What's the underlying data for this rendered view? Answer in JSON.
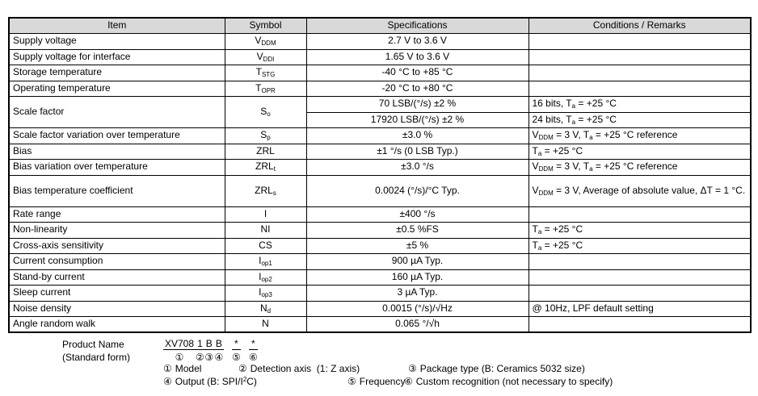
{
  "table": {
    "headers": [
      "Item",
      "Symbol",
      "Specifications",
      "Conditions / Remarks"
    ],
    "rows": [
      {
        "item": "Supply voltage",
        "symbol": [
          "V",
          {
            "sub": "DDM"
          }
        ],
        "spec": [
          "2.7 V to 3.6 V"
        ],
        "cond": []
      },
      {
        "item": "Supply voltage for interface",
        "symbol": [
          "V",
          {
            "sub": "DDI"
          }
        ],
        "spec": [
          "1.65 V to 3.6 V"
        ],
        "cond": []
      },
      {
        "item": "Storage temperature",
        "symbol": [
          "T",
          {
            "sub": "STG"
          }
        ],
        "spec": [
          "-40 °C to +85 °C"
        ],
        "cond": []
      },
      {
        "item": "Operating temperature",
        "symbol": [
          "T",
          {
            "sub": "OPR"
          }
        ],
        "spec": [
          "-20 °C to +80 °C"
        ],
        "cond": []
      },
      {
        "item": "Scale factor",
        "symbol": [
          "S",
          {
            "sub": "o"
          }
        ],
        "subrows": [
          {
            "spec": [
              "70 LSB/(°/s) ±2 %"
            ],
            "cond": [
              "16 bits, T",
              {
                "sub": "a"
              },
              " = +25 °C"
            ]
          },
          {
            "spec": [
              "17920 LSB/(°/s) ±2 %"
            ],
            "cond": [
              "24 bits, T",
              {
                "sub": "a"
              },
              " = +25 °C"
            ]
          }
        ]
      },
      {
        "item": "Scale factor variation over temperature",
        "symbol": [
          "S",
          {
            "sub": "p"
          }
        ],
        "spec": [
          "±3.0 %"
        ],
        "cond": [
          "V",
          {
            "sub": "DDM"
          },
          " = 3 V, T",
          {
            "sub": "a"
          },
          " = +25 °C reference"
        ]
      },
      {
        "item": "Bias",
        "symbol": [
          "ZRL"
        ],
        "spec": [
          "±1 °/s (0 LSB Typ.)"
        ],
        "cond": [
          "T",
          {
            "sub": "a"
          },
          " = +25 °C"
        ]
      },
      {
        "item": "Bias variation over temperature",
        "symbol": [
          "ZRL",
          {
            "sub": "t"
          }
        ],
        "spec": [
          "±3.0 °/s"
        ],
        "cond": [
          "V",
          {
            "sub": "DDM"
          },
          " = 3 V, T",
          {
            "sub": "a"
          },
          " = +25 °C reference"
        ]
      },
      {
        "item": "Bias temperature coefficient",
        "symbol": [
          "ZRL",
          {
            "sub": "s"
          }
        ],
        "spec": [
          "0.0024 (°/s)/°C Typ."
        ],
        "cond": [
          "V",
          {
            "sub": "DDM"
          },
          " = 3 V, Average of absolute value, ΔT = 1 °C."
        ],
        "tall": true
      },
      {
        "item": "Rate range",
        "symbol": [
          "I"
        ],
        "spec": [
          "±400 °/s"
        ],
        "cond": []
      },
      {
        "item": "Non-linearity",
        "symbol": [
          "NI"
        ],
        "spec": [
          "±0.5 %FS"
        ],
        "cond": [
          "T",
          {
            "sub": "a"
          },
          " = +25 °C"
        ]
      },
      {
        "item": "Cross-axis sensitivity",
        "symbol": [
          "CS"
        ],
        "spec": [
          "±5 %"
        ],
        "cond": [
          "T",
          {
            "sub": "a"
          },
          " = +25 °C"
        ]
      },
      {
        "item": "Current consumption",
        "symbol": [
          "I",
          {
            "sub": "op1"
          }
        ],
        "spec": [
          "900 µA Typ."
        ],
        "cond": []
      },
      {
        "item": "Stand-by current",
        "symbol": [
          "I",
          {
            "sub": "op2"
          }
        ],
        "spec": [
          "160 µA Typ."
        ],
        "cond": []
      },
      {
        "item": "Sleep current",
        "symbol": [
          "I",
          {
            "sub": "op3"
          }
        ],
        "spec": [
          "3 µA Typ."
        ],
        "cond": []
      },
      {
        "item": "Noise density",
        "symbol": [
          "N",
          {
            "sub": "d"
          }
        ],
        "spec": [
          "0.0015 (°/s)/√Hz"
        ],
        "cond": [
          "@ 10Hz, LPF default setting"
        ]
      },
      {
        "item": "Angle random walk",
        "symbol": [
          "N"
        ],
        "spec": [
          "0.065 °/√h"
        ],
        "cond": []
      }
    ]
  },
  "product": {
    "label_line1": "Product Name",
    "label_line2": "(Standard form)",
    "code_segments": [
      {
        "char": "XV708",
        "marker": "①",
        "group": "name"
      },
      {
        "char": "1",
        "marker": "②",
        "group": "name"
      },
      {
        "char": "B",
        "marker": "③",
        "group": "name"
      },
      {
        "char": "B",
        "marker": "④",
        "group": "name"
      },
      {
        "char": "*",
        "marker": "⑤",
        "group": "star"
      },
      {
        "char": "*",
        "marker": "⑥",
        "group": "star"
      }
    ],
    "legend": [
      [
        {
          "num": "①",
          "text": [
            "Model"
          ]
        },
        {
          "num": "②",
          "text": [
            "Detection axis  (1: Z axis)"
          ]
        },
        {
          "num": "③",
          "text": [
            "Package type (B: Ceramics 5032 size)"
          ]
        }
      ],
      [
        {
          "num": "④",
          "text": [
            "Output (B: SPI/I",
            {
              "sup": "2"
            },
            "C)"
          ]
        },
        {
          "num": "⑤",
          "text": [
            "Frequency"
          ]
        },
        {
          "num": "⑥",
          "text": [
            "Custom recognition (not necessary to specify)"
          ]
        }
      ]
    ]
  },
  "colors": {
    "header_bg": "#d9d9d9",
    "border": "#000000",
    "text": "#000000",
    "page_bg": "#ffffff"
  }
}
